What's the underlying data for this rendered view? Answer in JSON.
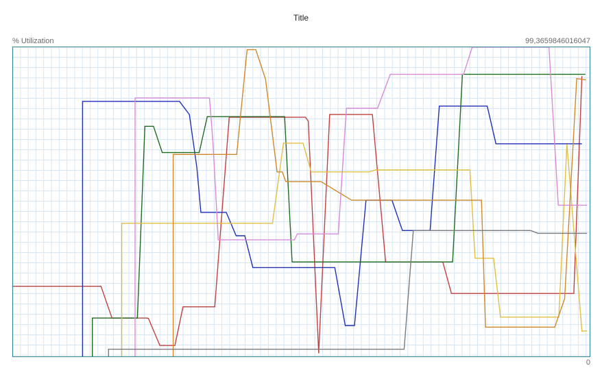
{
  "chart_data": {
    "type": "line",
    "title": "Title",
    "ylabel": "% Utilization",
    "ymax_label": "99,3659846016047",
    "ymin_label": "0",
    "ylim": [
      0,
      99.3659846016047
    ],
    "xlim": [
      0,
      100
    ],
    "grid": true,
    "colors": {
      "frame": "#2f7f96",
      "grid": "#d6e6f5"
    },
    "series": [
      {
        "color": "#c04040",
        "points": [
          [
            0,
            22.6
          ],
          [
            15.3,
            22.6
          ],
          [
            17.2,
            12.4
          ],
          [
            23.2,
            12.4
          ],
          [
            23.5,
            12.3
          ],
          [
            25.5,
            3.6
          ],
          [
            26.6,
            3.6
          ],
          [
            28.1,
            3.6
          ],
          [
            29.5,
            16
          ],
          [
            35,
            16
          ],
          [
            37.5,
            76.8
          ],
          [
            50.7,
            76.8
          ],
          [
            51.2,
            75.6
          ],
          [
            53,
            1.1
          ],
          [
            54.9,
            77.7
          ],
          [
            62.3,
            77.7
          ],
          [
            64.6,
            30.4
          ],
          [
            74.5,
            30.4
          ],
          [
            76,
            20.3
          ],
          [
            97.2,
            20.3
          ],
          [
            98.6,
            90
          ]
        ]
      },
      {
        "color": "#1f2fb8",
        "points": [
          [
            12.1,
            0
          ],
          [
            12.1,
            81.9
          ],
          [
            28.9,
            81.9
          ],
          [
            30.6,
            77.7
          ],
          [
            31.9,
            60.7
          ],
          [
            32.6,
            46.3
          ],
          [
            37,
            46.3
          ],
          [
            38.7,
            38.8
          ],
          [
            40.2,
            38.8
          ],
          [
            41.6,
            28.6
          ],
          [
            55.8,
            28.6
          ],
          [
            57.6,
            10
          ],
          [
            59.2,
            10
          ],
          [
            61.2,
            50.2
          ],
          [
            65.7,
            50.2
          ],
          [
            67.5,
            40.5
          ],
          [
            72.3,
            40.5
          ],
          [
            73.9,
            80.4
          ],
          [
            82.2,
            80.4
          ],
          [
            83.7,
            68.3
          ],
          [
            98.6,
            68.3
          ]
        ]
      },
      {
        "color": "#1f6b1f",
        "points": [
          [
            13.8,
            0
          ],
          [
            13.8,
            12.4
          ],
          [
            21.6,
            12.4
          ],
          [
            22.9,
            73.9
          ],
          [
            24.4,
            73.9
          ],
          [
            25.9,
            65.5
          ],
          [
            32.3,
            65.5
          ],
          [
            33.7,
            77
          ],
          [
            47.1,
            77
          ],
          [
            48.4,
            30.4
          ],
          [
            76.2,
            30.4
          ],
          [
            77.9,
            90.6
          ],
          [
            99.2,
            90.6
          ]
        ]
      },
      {
        "color": "#e0c040",
        "points": [
          [
            18.9,
            0
          ],
          [
            18.9,
            42.8
          ],
          [
            45,
            42.8
          ],
          [
            46.9,
            68.5
          ],
          [
            50.3,
            68.5
          ],
          [
            51.7,
            59.3
          ],
          [
            61.8,
            59.3
          ],
          [
            62.8,
            59.9
          ],
          [
            79.2,
            59.9
          ],
          [
            80.1,
            31.6
          ],
          [
            83.3,
            31.6
          ],
          [
            84.5,
            12.7
          ],
          [
            94.6,
            12.7
          ],
          [
            96,
            68.2
          ],
          [
            98.6,
            8.2
          ],
          [
            99.5,
            8.3
          ]
        ]
      },
      {
        "color": "#d08828",
        "points": [
          [
            27.8,
            0
          ],
          [
            27.8,
            64.9
          ],
          [
            38.8,
            64.9
          ],
          [
            40.6,
            98.5
          ],
          [
            42.1,
            98.5
          ],
          [
            43.8,
            89
          ],
          [
            45.8,
            59.3
          ],
          [
            46.7,
            59.3
          ],
          [
            47.3,
            56.2
          ],
          [
            53.4,
            56.2
          ],
          [
            58.7,
            50.2
          ],
          [
            81.2,
            50.2
          ],
          [
            81.9,
            9.5
          ],
          [
            93.9,
            9.5
          ],
          [
            95.6,
            18.6
          ],
          [
            97.7,
            89.2
          ],
          [
            99.3,
            88.8
          ]
        ]
      },
      {
        "color": "#d88ad8",
        "points": [
          [
            21.2,
            0
          ],
          [
            21.2,
            83
          ],
          [
            34.1,
            83
          ],
          [
            34.7,
            68.3
          ],
          [
            35.6,
            37.5
          ],
          [
            48.8,
            37.5
          ],
          [
            49.3,
            39.4
          ],
          [
            50.6,
            39.4
          ],
          [
            56.4,
            39.4
          ],
          [
            57.8,
            79.7
          ],
          [
            63.2,
            79.7
          ],
          [
            65.4,
            90.6
          ],
          [
            78.1,
            90.6
          ],
          [
            79.6,
            99.3
          ],
          [
            92.9,
            99.3
          ],
          [
            94.5,
            48.6
          ],
          [
            99.5,
            48.6
          ]
        ]
      },
      {
        "color": "#7a7a7a",
        "points": [
          [
            16.6,
            0
          ],
          [
            16.6,
            2.4
          ],
          [
            67.8,
            2.4
          ],
          [
            69.4,
            40.5
          ],
          [
            89.7,
            40.5
          ],
          [
            91,
            39.6
          ],
          [
            99.5,
            39.6
          ]
        ]
      }
    ]
  }
}
